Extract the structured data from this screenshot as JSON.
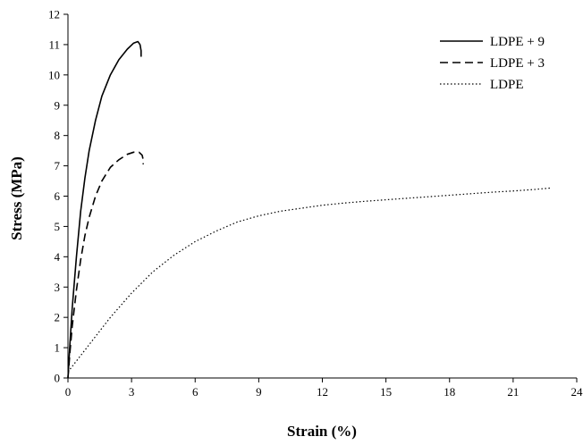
{
  "chart_data": {
    "type": "line",
    "xlabel": "Strain (%)",
    "ylabel": "Stress (MPa)",
    "xlim": [
      0,
      24
    ],
    "ylim": [
      0,
      12
    ],
    "xticks": [
      0,
      3,
      6,
      9,
      12,
      15,
      18,
      21,
      24
    ],
    "yticks": [
      0,
      1,
      2,
      3,
      4,
      5,
      6,
      7,
      8,
      9,
      10,
      11,
      12
    ],
    "grid": false,
    "legend_position": "top-right",
    "series": [
      {
        "name": "LDPE + 9",
        "style": "solid",
        "x": [
          0,
          0.1,
          0.2,
          0.4,
          0.6,
          0.8,
          1.0,
          1.3,
          1.6,
          2.0,
          2.4,
          2.8,
          3.1,
          3.3,
          3.4,
          3.45,
          3.45
        ],
        "y": [
          0,
          1.2,
          2.3,
          4.0,
          5.5,
          6.6,
          7.5,
          8.5,
          9.3,
          10.0,
          10.5,
          10.85,
          11.05,
          11.1,
          11.0,
          10.8,
          10.6
        ]
      },
      {
        "name": "LDPE + 3",
        "style": "dashed",
        "x": [
          0,
          0.1,
          0.2,
          0.4,
          0.6,
          0.8,
          1.0,
          1.3,
          1.6,
          2.0,
          2.4,
          2.8,
          3.1,
          3.35,
          3.5,
          3.55,
          3.55
        ],
        "y": [
          0,
          0.9,
          1.7,
          2.9,
          3.9,
          4.7,
          5.3,
          6.0,
          6.5,
          6.95,
          7.2,
          7.38,
          7.45,
          7.45,
          7.35,
          7.2,
          7.05
        ]
      },
      {
        "name": "LDPE",
        "style": "dotted",
        "x": [
          0,
          0.5,
          1,
          2,
          3,
          4,
          5,
          6,
          7,
          8,
          9,
          10,
          11,
          12,
          13,
          14,
          15,
          16,
          17,
          18,
          19,
          20,
          21,
          22,
          22.8
        ],
        "y": [
          0.2,
          0.65,
          1.1,
          2.0,
          2.8,
          3.5,
          4.05,
          4.5,
          4.85,
          5.15,
          5.35,
          5.5,
          5.6,
          5.7,
          5.77,
          5.83,
          5.88,
          5.93,
          5.98,
          6.03,
          6.08,
          6.13,
          6.17,
          6.22,
          6.27
        ]
      }
    ]
  }
}
